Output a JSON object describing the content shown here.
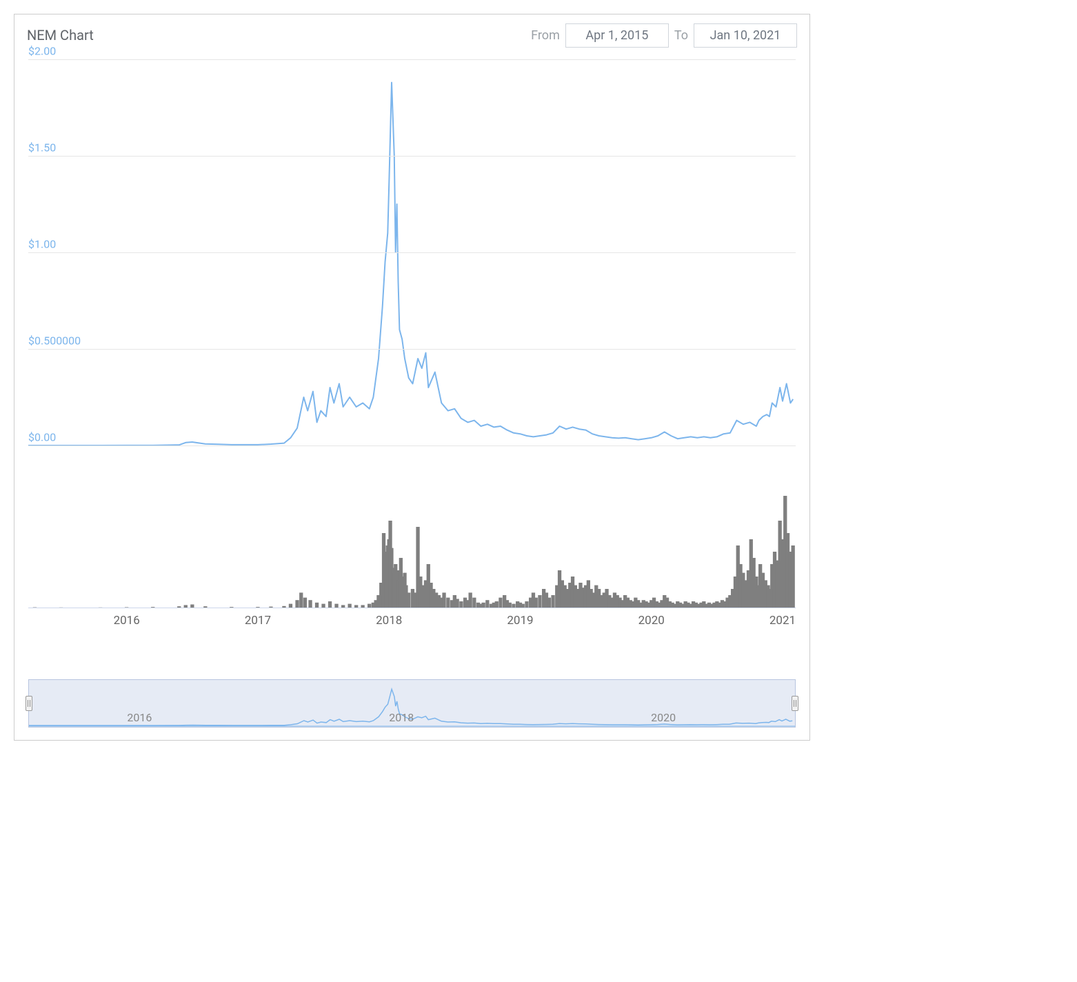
{
  "header": {
    "title": "NEM Chart",
    "from_label": "From",
    "to_label": "To",
    "from_value": "Apr 1, 2015",
    "to_value": "Jan 10, 2021"
  },
  "price_chart": {
    "type": "line",
    "line_color": "#7cb5ec",
    "line_width": 2,
    "background_color": "#ffffff",
    "grid_color": "#e6e6e6",
    "ylim": [
      0,
      2.0
    ],
    "yticks": [
      {
        "v": 0.0,
        "label": "$0.00"
      },
      {
        "v": 0.5,
        "label": "$0.500000"
      },
      {
        "v": 1.0,
        "label": "$1.00"
      },
      {
        "v": 1.5,
        "label": "$1.50"
      },
      {
        "v": 2.0,
        "label": "$2.00"
      }
    ],
    "ylabel_color": "#7cb5ec",
    "ylabel_fontsize": 16,
    "x_range": [
      2015.25,
      2021.1
    ],
    "series": [
      [
        2015.25,
        0.0
      ],
      [
        2015.4,
        0.0001
      ],
      [
        2015.6,
        0.0001
      ],
      [
        2015.8,
        0.0001
      ],
      [
        2016.0,
        0.0002
      ],
      [
        2016.2,
        0.0005
      ],
      [
        2016.4,
        0.003
      ],
      [
        2016.45,
        0.015
      ],
      [
        2016.5,
        0.018
      ],
      [
        2016.6,
        0.008
      ],
      [
        2016.7,
        0.006
      ],
      [
        2016.8,
        0.004
      ],
      [
        2016.9,
        0.004
      ],
      [
        2017.0,
        0.004
      ],
      [
        2017.1,
        0.007
      ],
      [
        2017.2,
        0.012
      ],
      [
        2017.25,
        0.04
      ],
      [
        2017.3,
        0.09
      ],
      [
        2017.35,
        0.25
      ],
      [
        2017.38,
        0.18
      ],
      [
        2017.42,
        0.28
      ],
      [
        2017.45,
        0.12
      ],
      [
        2017.48,
        0.18
      ],
      [
        2017.52,
        0.15
      ],
      [
        2017.55,
        0.3
      ],
      [
        2017.58,
        0.22
      ],
      [
        2017.62,
        0.32
      ],
      [
        2017.65,
        0.2
      ],
      [
        2017.7,
        0.25
      ],
      [
        2017.75,
        0.2
      ],
      [
        2017.8,
        0.22
      ],
      [
        2017.85,
        0.19
      ],
      [
        2017.88,
        0.25
      ],
      [
        2017.92,
        0.45
      ],
      [
        2017.95,
        0.72
      ],
      [
        2017.97,
        0.95
      ],
      [
        2017.99,
        1.1
      ],
      [
        2018.0,
        1.35
      ],
      [
        2018.02,
        1.88
      ],
      [
        2018.04,
        1.5
      ],
      [
        2018.05,
        1.0
      ],
      [
        2018.06,
        1.25
      ],
      [
        2018.07,
        0.85
      ],
      [
        2018.08,
        0.6
      ],
      [
        2018.1,
        0.55
      ],
      [
        2018.12,
        0.45
      ],
      [
        2018.15,
        0.35
      ],
      [
        2018.18,
        0.32
      ],
      [
        2018.22,
        0.45
      ],
      [
        2018.25,
        0.4
      ],
      [
        2018.28,
        0.48
      ],
      [
        2018.3,
        0.3
      ],
      [
        2018.35,
        0.38
      ],
      [
        2018.4,
        0.22
      ],
      [
        2018.45,
        0.18
      ],
      [
        2018.5,
        0.19
      ],
      [
        2018.55,
        0.14
      ],
      [
        2018.6,
        0.12
      ],
      [
        2018.65,
        0.13
      ],
      [
        2018.7,
        0.1
      ],
      [
        2018.75,
        0.11
      ],
      [
        2018.8,
        0.095
      ],
      [
        2018.85,
        0.1
      ],
      [
        2018.9,
        0.08
      ],
      [
        2018.95,
        0.065
      ],
      [
        2019.0,
        0.06
      ],
      [
        2019.05,
        0.05
      ],
      [
        2019.1,
        0.045
      ],
      [
        2019.15,
        0.05
      ],
      [
        2019.2,
        0.055
      ],
      [
        2019.25,
        0.065
      ],
      [
        2019.3,
        0.1
      ],
      [
        2019.35,
        0.085
      ],
      [
        2019.4,
        0.095
      ],
      [
        2019.45,
        0.085
      ],
      [
        2019.5,
        0.08
      ],
      [
        2019.55,
        0.06
      ],
      [
        2019.6,
        0.05
      ],
      [
        2019.65,
        0.045
      ],
      [
        2019.7,
        0.04
      ],
      [
        2019.75,
        0.038
      ],
      [
        2019.8,
        0.04
      ],
      [
        2019.85,
        0.035
      ],
      [
        2019.9,
        0.03
      ],
      [
        2019.95,
        0.035
      ],
      [
        2020.0,
        0.04
      ],
      [
        2020.05,
        0.05
      ],
      [
        2020.1,
        0.07
      ],
      [
        2020.15,
        0.05
      ],
      [
        2020.2,
        0.035
      ],
      [
        2020.25,
        0.04
      ],
      [
        2020.3,
        0.045
      ],
      [
        2020.35,
        0.04
      ],
      [
        2020.4,
        0.045
      ],
      [
        2020.45,
        0.04
      ],
      [
        2020.5,
        0.045
      ],
      [
        2020.55,
        0.06
      ],
      [
        2020.6,
        0.065
      ],
      [
        2020.65,
        0.13
      ],
      [
        2020.7,
        0.11
      ],
      [
        2020.75,
        0.12
      ],
      [
        2020.8,
        0.1
      ],
      [
        2020.82,
        0.13
      ],
      [
        2020.85,
        0.15
      ],
      [
        2020.88,
        0.16
      ],
      [
        2020.9,
        0.15
      ],
      [
        2020.92,
        0.22
      ],
      [
        2020.95,
        0.2
      ],
      [
        2020.98,
        0.3
      ],
      [
        2021.0,
        0.23
      ],
      [
        2021.03,
        0.32
      ],
      [
        2021.06,
        0.22
      ],
      [
        2021.08,
        0.24
      ]
    ]
  },
  "volume_chart": {
    "type": "bar",
    "bar_color": "#7f7f7f",
    "ylim": [
      0,
      100
    ],
    "x_range": [
      2015.25,
      2021.1
    ],
    "series": [
      [
        2015.3,
        0.2
      ],
      [
        2015.5,
        0.1
      ],
      [
        2015.8,
        0.1
      ],
      [
        2016.0,
        0.3
      ],
      [
        2016.2,
        0.5
      ],
      [
        2016.4,
        1.0
      ],
      [
        2016.45,
        2.0
      ],
      [
        2016.5,
        2.5
      ],
      [
        2016.6,
        1.0
      ],
      [
        2016.8,
        0.5
      ],
      [
        2017.0,
        0.5
      ],
      [
        2017.1,
        0.8
      ],
      [
        2017.2,
        1.2
      ],
      [
        2017.25,
        3
      ],
      [
        2017.3,
        6
      ],
      [
        2017.33,
        12
      ],
      [
        2017.36,
        8
      ],
      [
        2017.4,
        6
      ],
      [
        2017.45,
        4
      ],
      [
        2017.5,
        3
      ],
      [
        2017.55,
        5
      ],
      [
        2017.6,
        3
      ],
      [
        2017.65,
        2
      ],
      [
        2017.7,
        3
      ],
      [
        2017.75,
        2
      ],
      [
        2017.8,
        2
      ],
      [
        2017.85,
        3
      ],
      [
        2017.88,
        4
      ],
      [
        2017.9,
        6
      ],
      [
        2017.92,
        10
      ],
      [
        2017.94,
        20
      ],
      [
        2017.96,
        60
      ],
      [
        2017.97,
        45
      ],
      [
        2017.98,
        35
      ],
      [
        2017.99,
        50
      ],
      [
        2018.0,
        55
      ],
      [
        2018.01,
        70
      ],
      [
        2018.02,
        48
      ],
      [
        2018.03,
        32
      ],
      [
        2018.04,
        28
      ],
      [
        2018.05,
        35
      ],
      [
        2018.06,
        30
      ],
      [
        2018.07,
        22
      ],
      [
        2018.08,
        30
      ],
      [
        2018.09,
        40
      ],
      [
        2018.1,
        25
      ],
      [
        2018.11,
        15
      ],
      [
        2018.12,
        28
      ],
      [
        2018.13,
        18
      ],
      [
        2018.15,
        12
      ],
      [
        2018.18,
        15
      ],
      [
        2018.2,
        12
      ],
      [
        2018.22,
        65
      ],
      [
        2018.24,
        25
      ],
      [
        2018.26,
        18
      ],
      [
        2018.28,
        22
      ],
      [
        2018.3,
        35
      ],
      [
        2018.32,
        20
      ],
      [
        2018.34,
        15
      ],
      [
        2018.36,
        12
      ],
      [
        2018.38,
        10
      ],
      [
        2018.4,
        8
      ],
      [
        2018.42,
        12
      ],
      [
        2018.45,
        8
      ],
      [
        2018.48,
        6
      ],
      [
        2018.5,
        10
      ],
      [
        2018.52,
        7
      ],
      [
        2018.55,
        5
      ],
      [
        2018.58,
        8
      ],
      [
        2018.6,
        6
      ],
      [
        2018.62,
        12
      ],
      [
        2018.65,
        8
      ],
      [
        2018.68,
        4
      ],
      [
        2018.7,
        3
      ],
      [
        2018.72,
        4
      ],
      [
        2018.75,
        6
      ],
      [
        2018.78,
        3
      ],
      [
        2018.8,
        4
      ],
      [
        2018.82,
        5
      ],
      [
        2018.85,
        8
      ],
      [
        2018.88,
        10
      ],
      [
        2018.9,
        6
      ],
      [
        2018.92,
        4
      ],
      [
        2018.95,
        3
      ],
      [
        2018.98,
        5
      ],
      [
        2019.0,
        4
      ],
      [
        2019.02,
        3
      ],
      [
        2019.05,
        5
      ],
      [
        2019.08,
        8
      ],
      [
        2019.1,
        12
      ],
      [
        2019.12,
        8
      ],
      [
        2019.15,
        10
      ],
      [
        2019.18,
        15
      ],
      [
        2019.2,
        12
      ],
      [
        2019.22,
        8
      ],
      [
        2019.25,
        10
      ],
      [
        2019.28,
        18
      ],
      [
        2019.3,
        30
      ],
      [
        2019.32,
        22
      ],
      [
        2019.34,
        18
      ],
      [
        2019.36,
        15
      ],
      [
        2019.38,
        20
      ],
      [
        2019.4,
        25
      ],
      [
        2019.42,
        18
      ],
      [
        2019.44,
        15
      ],
      [
        2019.46,
        20
      ],
      [
        2019.48,
        16
      ],
      [
        2019.5,
        18
      ],
      [
        2019.52,
        22
      ],
      [
        2019.54,
        15
      ],
      [
        2019.56,
        12
      ],
      [
        2019.58,
        18
      ],
      [
        2019.6,
        15
      ],
      [
        2019.62,
        10
      ],
      [
        2019.64,
        12
      ],
      [
        2019.66,
        15
      ],
      [
        2019.68,
        10
      ],
      [
        2019.7,
        8
      ],
      [
        2019.72,
        12
      ],
      [
        2019.74,
        10
      ],
      [
        2019.76,
        8
      ],
      [
        2019.78,
        6
      ],
      [
        2019.8,
        10
      ],
      [
        2019.82,
        8
      ],
      [
        2019.84,
        6
      ],
      [
        2019.86,
        5
      ],
      [
        2019.88,
        8
      ],
      [
        2019.9,
        6
      ],
      [
        2019.92,
        4
      ],
      [
        2019.94,
        6
      ],
      [
        2019.96,
        5
      ],
      [
        2019.98,
        4
      ],
      [
        2020.0,
        6
      ],
      [
        2020.02,
        8
      ],
      [
        2020.04,
        5
      ],
      [
        2020.06,
        4
      ],
      [
        2020.08,
        6
      ],
      [
        2020.1,
        10
      ],
      [
        2020.12,
        8
      ],
      [
        2020.14,
        5
      ],
      [
        2020.16,
        4
      ],
      [
        2020.18,
        3
      ],
      [
        2020.2,
        5
      ],
      [
        2020.22,
        4
      ],
      [
        2020.24,
        3
      ],
      [
        2020.26,
        5
      ],
      [
        2020.28,
        4
      ],
      [
        2020.3,
        3
      ],
      [
        2020.32,
        5
      ],
      [
        2020.34,
        4
      ],
      [
        2020.36,
        3
      ],
      [
        2020.38,
        4
      ],
      [
        2020.4,
        5
      ],
      [
        2020.42,
        3
      ],
      [
        2020.44,
        4
      ],
      [
        2020.46,
        3
      ],
      [
        2020.48,
        4
      ],
      [
        2020.5,
        5
      ],
      [
        2020.52,
        4
      ],
      [
        2020.54,
        6
      ],
      [
        2020.56,
        5
      ],
      [
        2020.58,
        8
      ],
      [
        2020.6,
        10
      ],
      [
        2020.62,
        15
      ],
      [
        2020.64,
        25
      ],
      [
        2020.66,
        50
      ],
      [
        2020.68,
        35
      ],
      [
        2020.7,
        28
      ],
      [
        2020.72,
        22
      ],
      [
        2020.74,
        30
      ],
      [
        2020.76,
        55
      ],
      [
        2020.78,
        40
      ],
      [
        2020.8,
        25
      ],
      [
        2020.81,
        18
      ],
      [
        2020.83,
        35
      ],
      [
        2020.85,
        28
      ],
      [
        2020.87,
        22
      ],
      [
        2020.89,
        18
      ],
      [
        2020.9,
        15
      ],
      [
        2020.92,
        35
      ],
      [
        2020.94,
        45
      ],
      [
        2020.96,
        38
      ],
      [
        2020.98,
        70
      ],
      [
        2021.0,
        55
      ],
      [
        2021.02,
        90
      ],
      [
        2021.04,
        60
      ],
      [
        2021.06,
        45
      ],
      [
        2021.08,
        50
      ]
    ]
  },
  "x_axis": {
    "ticks": [
      2016,
      2017,
      2018,
      2019,
      2020,
      2021
    ],
    "label_color": "#666666",
    "label_fontsize": 17
  },
  "navigator": {
    "background_color": "#e6ebf5",
    "border_color": "#b8c5df",
    "line_color": "#7cb5ec",
    "handle_color": "#f2f2f2",
    "year_labels": [
      2016,
      2018,
      2020
    ],
    "x_range": [
      2015.25,
      2021.1
    ]
  }
}
